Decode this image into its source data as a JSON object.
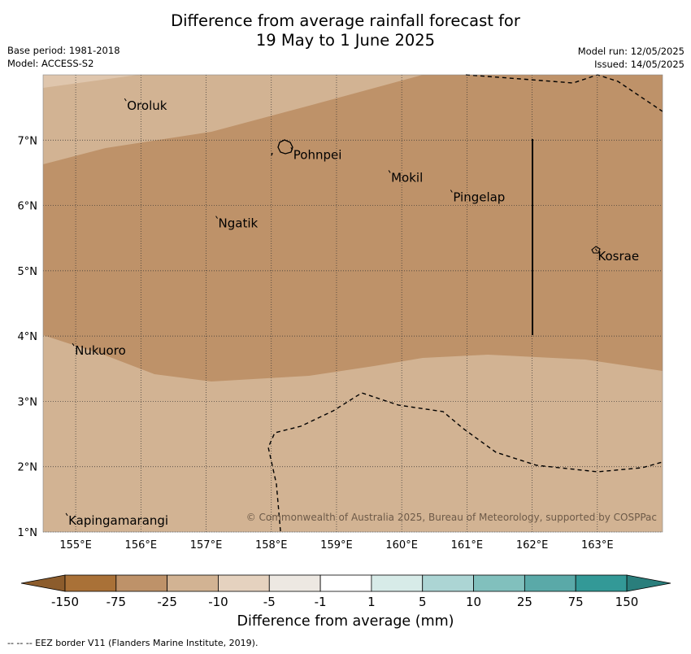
{
  "title": {
    "line1": "Difference from average rainfall forecast for",
    "line2": "19 May to 1 June 2025"
  },
  "meta": {
    "base_period": "Base period: 1981-2018",
    "model": "Model: ACCESS-S2",
    "model_run": "Model run: 12/05/2025",
    "issued": "Issued: 14/05/2025"
  },
  "map": {
    "lon_range": [
      154.5,
      164.0
    ],
    "lat_range": [
      1.0,
      8.0
    ],
    "lon_ticks": [
      "155°E",
      "156°E",
      "157°E",
      "158°E",
      "159°E",
      "160°E",
      "161°E",
      "162°E",
      "163°E"
    ],
    "lat_ticks": [
      "1°N",
      "2°N",
      "3°N",
      "4°N",
      "5°N",
      "6°N",
      "7°N"
    ],
    "places": [
      {
        "name": "Oroluk",
        "lon": 155.75,
        "lat": 7.6
      },
      {
        "name": "Pohnpei",
        "lon": 158.3,
        "lat": 6.85
      },
      {
        "name": "Mokil",
        "lon": 159.8,
        "lat": 6.5
      },
      {
        "name": "Pingelap",
        "lon": 160.75,
        "lat": 6.2
      },
      {
        "name": "Ngatik",
        "lon": 157.15,
        "lat": 5.8
      },
      {
        "name": "Kosrae",
        "lon": 162.97,
        "lat": 5.3
      },
      {
        "name": "Nukuoro",
        "lon": 154.95,
        "lat": 3.85
      },
      {
        "name": "Kapingamarangi",
        "lon": 154.85,
        "lat": 1.25
      }
    ],
    "copyright": "© Commonwealth of Australia 2025, Bureau of Meteorology, supported by COSPPac"
  },
  "colorbar": {
    "title": "Difference from average (mm)",
    "ticks": [
      "-150",
      "-75",
      "-25",
      "-10",
      "-5",
      "-1",
      "1",
      "5",
      "10",
      "25",
      "75",
      "150"
    ],
    "colors": [
      "#a97137",
      "#be9269",
      "#d2b393",
      "#e5d2bf",
      "#ede8e2",
      "#ffffff",
      "#d7ebe8",
      "#acd5d4",
      "#81c0bd",
      "#5aa9a8",
      "#339997"
    ],
    "end_low": "#8c5c2c",
    "end_high": "#2a7e7c"
  },
  "footnote": "--  --  -- EEZ border V11 (Flanders Marine Institute, 2019)."
}
